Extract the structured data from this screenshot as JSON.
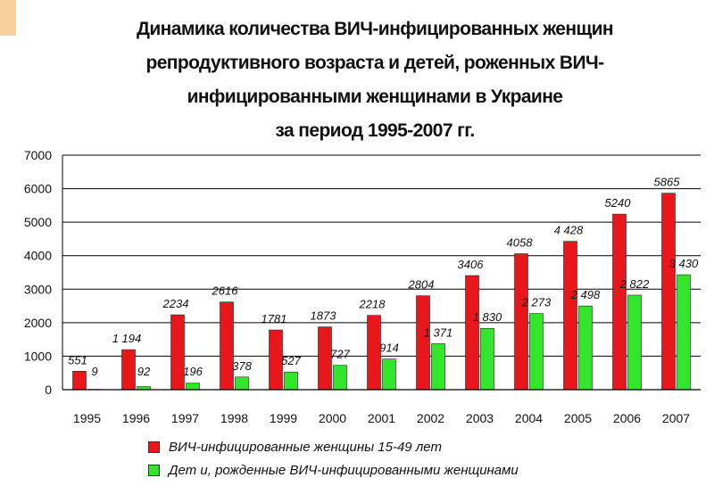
{
  "colors": {
    "series_red": "#e8171b",
    "series_green": "#33e62b",
    "corner_accent": "#f6cf9c",
    "gridline": "#000000"
  },
  "chart_data": {
    "type": "bar",
    "title_lines": [
      "Динамика количества ВИЧ-инфицированных женщин",
      "репродуктивного возраста и детей, роженных ВИЧ-",
      "инфицированными женщинами в Украине",
      "за период 1995-2007 гг."
    ],
    "categories": [
      "1995",
      "1996",
      "1997",
      "1998",
      "1999",
      "2000",
      "2001",
      "2002",
      "2003",
      "2004",
      "2005",
      "2006",
      "2007"
    ],
    "series": [
      {
        "name": "ВИЧ-инфицированные женщины 15-49 лет",
        "values": [
          551,
          1194,
          2234,
          2616,
          1781,
          1873,
          2218,
          2804,
          3406,
          4058,
          4428,
          5240,
          5865
        ],
        "labels": [
          "551",
          "1 194",
          "2234",
          "2616",
          "1781",
          "1873",
          "2218",
          "2804",
          "3406",
          "4058",
          "4 428",
          "5240",
          "5865"
        ]
      },
      {
        "name": "Дет и, рожденные ВИЧ-инфицированными женщинами",
        "values": [
          9,
          92,
          196,
          378,
          527,
          727,
          914,
          1371,
          1830,
          2273,
          2498,
          2822,
          3430
        ],
        "labels": [
          "9",
          "92",
          "196",
          "378",
          "527",
          "727",
          "914",
          "1 371",
          "1 830",
          "2 273",
          "2 498",
          "2 822",
          "3 430"
        ]
      }
    ],
    "ylim": [
      0,
      7000
    ],
    "yticks": [
      "0",
      "1000",
      "2000",
      "3000",
      "4000",
      "5000",
      "6000",
      "7000"
    ],
    "grid": true,
    "legend_position": "bottom"
  }
}
